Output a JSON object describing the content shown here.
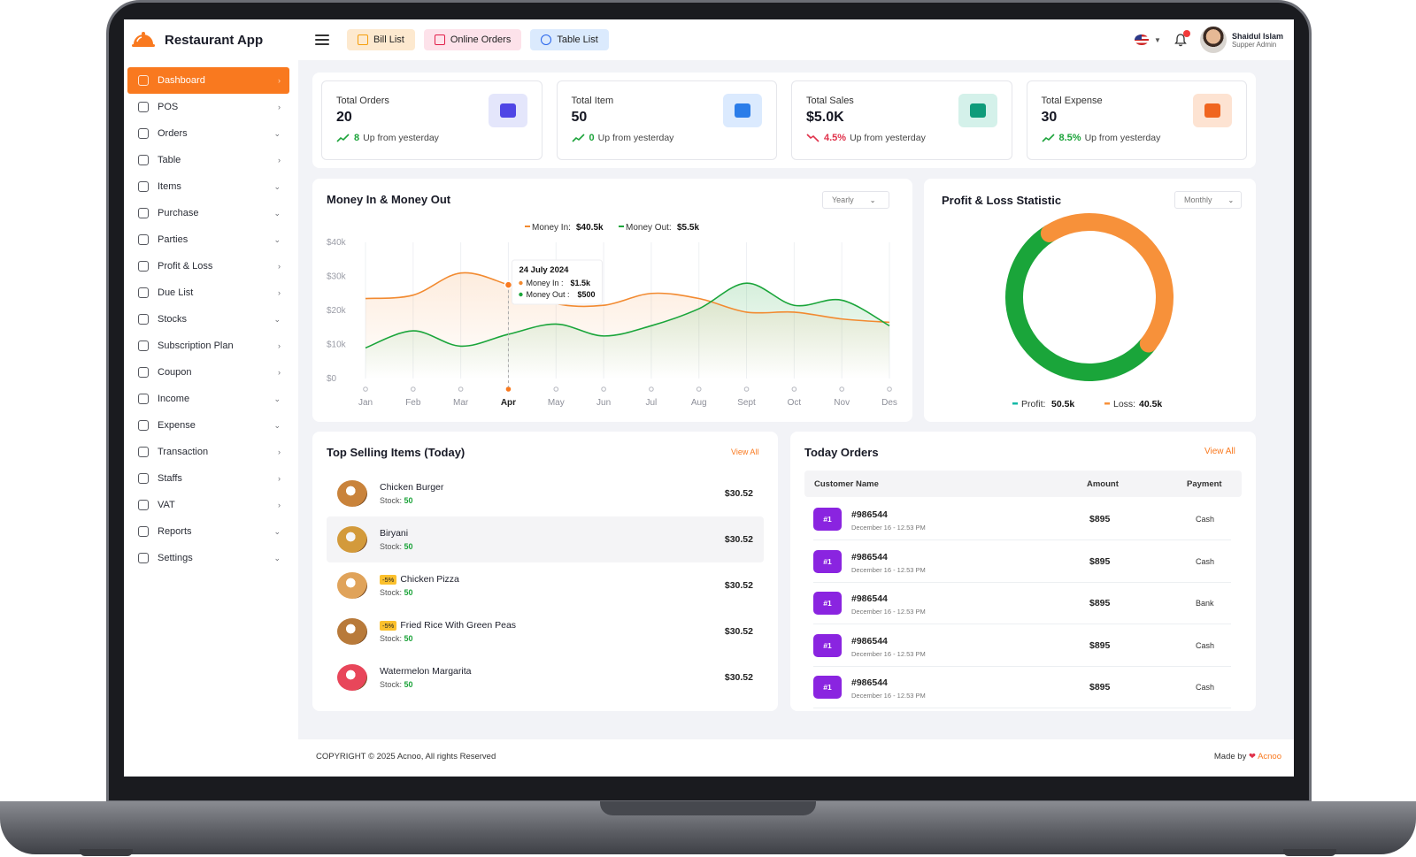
{
  "app": {
    "name": "Restaurant App"
  },
  "quick_buttons": [
    {
      "label": "Bill List",
      "color": "#f59e0b"
    },
    {
      "label": "Online Orders",
      "color": "#e11d48"
    },
    {
      "label": "Table List",
      "color": "#2563eb"
    }
  ],
  "user": {
    "name": "Shaidul Islam",
    "role": "Supper Admin"
  },
  "sidebar": {
    "items": [
      {
        "label": "Dashboard",
        "arrow": "›",
        "icon": "dashboard-icon",
        "active": true
      },
      {
        "label": "POS",
        "arrow": "›",
        "icon": "tag-icon"
      },
      {
        "label": "Orders",
        "arrow": "⌄",
        "icon": "clipboard-icon"
      },
      {
        "label": "Table",
        "arrow": "›",
        "icon": "table-icon"
      },
      {
        "label": "Items",
        "arrow": "⌄",
        "icon": "box-icon"
      },
      {
        "label": "Purchase",
        "arrow": "⌄",
        "icon": "basket-icon"
      },
      {
        "label": "Parties",
        "arrow": "⌄",
        "icon": "users-icon"
      },
      {
        "label": "Profit & Loss",
        "arrow": "›",
        "icon": "bars-icon"
      },
      {
        "label": "Due List",
        "arrow": "›",
        "icon": "document-icon"
      },
      {
        "label": "Stocks",
        "arrow": "⌄",
        "icon": "cube-icon"
      },
      {
        "label": "Subscription Plan",
        "arrow": "›",
        "icon": "plan-icon"
      },
      {
        "label": "Coupon",
        "arrow": "›",
        "icon": "coupon-icon"
      },
      {
        "label": "Income",
        "arrow": "⌄",
        "icon": "money-bag-icon"
      },
      {
        "label": "Expense",
        "arrow": "⌄",
        "icon": "wallet-icon"
      },
      {
        "label": "Transaction",
        "arrow": "›",
        "icon": "calculator-icon"
      },
      {
        "label": "Staffs",
        "arrow": "›",
        "icon": "staff-icon"
      },
      {
        "label": "VAT",
        "arrow": "›",
        "icon": "vat-icon"
      },
      {
        "label": "Reports",
        "arrow": "⌄",
        "icon": "report-icon"
      },
      {
        "label": "Settings",
        "arrow": "⌄",
        "icon": "gear-icon"
      }
    ]
  },
  "stats": [
    {
      "title": "Total Orders",
      "value": "20",
      "trend": "8",
      "trend_dir": "up",
      "suffix": "Up from yesterday",
      "icon_bg": "#e4e6fb",
      "icon_color": "#4f46e5",
      "icon": "cart-icon"
    },
    {
      "title": "Total Item",
      "value": "50",
      "trend": "0",
      "trend_dir": "up",
      "suffix": "Up from yesterday",
      "icon_bg": "#dbeafe",
      "icon_color": "#2b7de9",
      "icon": "box-icon"
    },
    {
      "title": "Total Sales",
      "value": "$5.0K",
      "trend": "4.5%",
      "trend_dir": "down",
      "suffix": "Up from yesterday",
      "icon_bg": "#d4f1ea",
      "icon_color": "#0f9b7a",
      "icon": "area-chart-icon"
    },
    {
      "title": "Total Expense",
      "value": "30",
      "trend": "8.5%",
      "trend_dir": "up",
      "suffix": "Up from yesterday",
      "icon_bg": "#fde3d2",
      "icon_color": "#f0651f",
      "icon": "bag-icon"
    }
  ],
  "money_chart": {
    "title": "Money In & Money Out",
    "filter": "Yearly",
    "legend": [
      {
        "label": "Money In:",
        "value": "$40.5k",
        "color": "#f28a30"
      },
      {
        "label": "Money Out:",
        "value": "$5.5k",
        "color": "#1aa53a"
      }
    ],
    "tooltip": {
      "date": "24 July 2024",
      "in_label": "Money In :",
      "in_value": "$1.5k",
      "out_label": "Money Out :",
      "out_value": "$500"
    }
  },
  "chart_data": {
    "type": "line",
    "categories": [
      "Jan",
      "Feb",
      "Mar",
      "Apr",
      "May",
      "Jun",
      "Jul",
      "Aug",
      "Sept",
      "Oct",
      "Nov",
      "Des"
    ],
    "series": [
      {
        "name": "Money In",
        "values": [
          23.5,
          24.5,
          31,
          27.5,
          22,
          21.5,
          25,
          23.5,
          19.5,
          19.5,
          17.5,
          16.5
        ],
        "color": "#f28a30"
      },
      {
        "name": "Money Out",
        "values": [
          9,
          14,
          9.5,
          13,
          16,
          12.5,
          15.5,
          20.5,
          28,
          21.5,
          23,
          15.5
        ],
        "color": "#1aa53a"
      }
    ],
    "y_ticks": [
      "$0",
      "$10k",
      "$20k",
      "$30k",
      "$40k"
    ],
    "ylim": [
      0,
      40
    ],
    "highlight_index": 3,
    "grid": "vertical"
  },
  "pl_chart": {
    "title": "Profit & Loss Statistic",
    "filter": "Monthly",
    "profit": {
      "label": "Profit:",
      "value": "50.5k",
      "amount": 50.5,
      "color": "#1aa53a",
      "legend_color": "#14b8a6"
    },
    "loss": {
      "label": "Loss:",
      "value": "40.5k",
      "amount": 40.5,
      "color": "#f7913a"
    }
  },
  "top_selling": {
    "title": "Top Selling Items (Today)",
    "view_all": "View All",
    "stock_label": "Stock:",
    "items": [
      {
        "name": "Chicken Burger",
        "stock": "50",
        "price": "$30.52",
        "badge": "",
        "img": "burger-icon"
      },
      {
        "name": "Biryani",
        "stock": "50",
        "price": "$30.52",
        "badge": "",
        "img": "biryani-icon"
      },
      {
        "name": "Chicken Pizza",
        "stock": "50",
        "price": "$30.52",
        "badge": "-5%",
        "img": "pizza-icon"
      },
      {
        "name": "Fried Rice With Green Peas",
        "stock": "50",
        "price": "$30.52",
        "badge": "-5%",
        "img": "fried-rice-icon"
      },
      {
        "name": "Watermelon Margarita",
        "stock": "50",
        "price": "$30.52",
        "badge": "",
        "img": "drink-icon"
      }
    ]
  },
  "today_orders": {
    "title": "Today Orders",
    "view_all": "View All",
    "columns": [
      "Customer Name",
      "Amount",
      "Payment"
    ],
    "rows": [
      {
        "badge": "#1",
        "id": "#986544",
        "date": "December 16 - 12.53 PM",
        "amount": "$895",
        "payment": "Cash"
      },
      {
        "badge": "#1",
        "id": "#986544",
        "date": "December 16 - 12.53 PM",
        "amount": "$895",
        "payment": "Cash"
      },
      {
        "badge": "#1",
        "id": "#986544",
        "date": "December 16 - 12.53 PM",
        "amount": "$895",
        "payment": "Bank"
      },
      {
        "badge": "#1",
        "id": "#986544",
        "date": "December 16 - 12.53 PM",
        "amount": "$895",
        "payment": "Cash"
      },
      {
        "badge": "#1",
        "id": "#986544",
        "date": "December 16 - 12.53 PM",
        "amount": "$895",
        "payment": "Cash"
      }
    ]
  },
  "footer": {
    "copyright": "COPYRIGHT © 2025 Acnoo, All rights Reserved",
    "made_by": "Made by",
    "heart": "❤",
    "brand": "Acnoo"
  }
}
